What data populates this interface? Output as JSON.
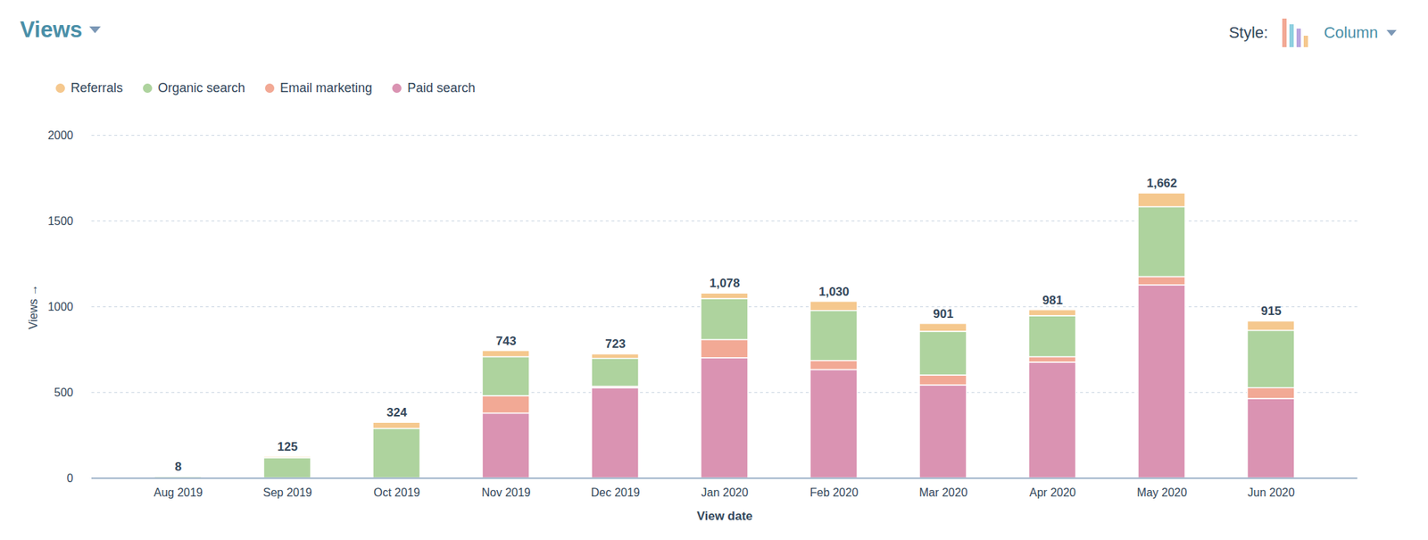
{
  "chart_data": {
    "type": "bar",
    "title": "Views",
    "annotations": [
      "Style:",
      "Column"
    ],
    "x_label": "View date",
    "y_label": "Views",
    "categories": [
      "Aug 2019",
      "Sep 2019",
      "Oct 2019",
      "Nov 2019",
      "Dec 2019",
      "Jan 2020",
      "Feb 2020",
      "Mar 2020",
      "Apr 2020",
      "May 2020",
      "Jun 2020"
    ],
    "series": [
      {
        "name": "Referrals",
        "color": "#f5c88e",
        "values": [
          0,
          8,
          36,
          37,
          26,
          33,
          54,
          47,
          36,
          81,
          55
        ]
      },
      {
        "name": "Organic search",
        "color": "#aed39e",
        "values": [
          8,
          117,
          288,
          228,
          164,
          239,
          292,
          255,
          239,
          408,
          334
        ]
      },
      {
        "name": "Email marketing",
        "color": "#f2a995",
        "values": [
          0,
          0,
          0,
          101,
          8,
          106,
          53,
          58,
          32,
          48,
          64
        ]
      },
      {
        "name": "Paid search",
        "color": "#da93b2",
        "values": [
          0,
          0,
          0,
          377,
          525,
          700,
          631,
          541,
          674,
          1125,
          462
        ]
      }
    ],
    "totals": [
      8,
      125,
      324,
      743,
      723,
      1078,
      1030,
      901,
      981,
      1662,
      915
    ],
    "total_labels": [
      "8",
      "125",
      "324",
      "743",
      "723",
      "1,078",
      "1,030",
      "901",
      "981",
      "1,662",
      "915"
    ],
    "ylim": [
      0,
      2000
    ],
    "yticks": [
      0,
      500,
      1000,
      1500,
      2000
    ],
    "stacked": true,
    "data_labels": true,
    "grid": true
  }
}
